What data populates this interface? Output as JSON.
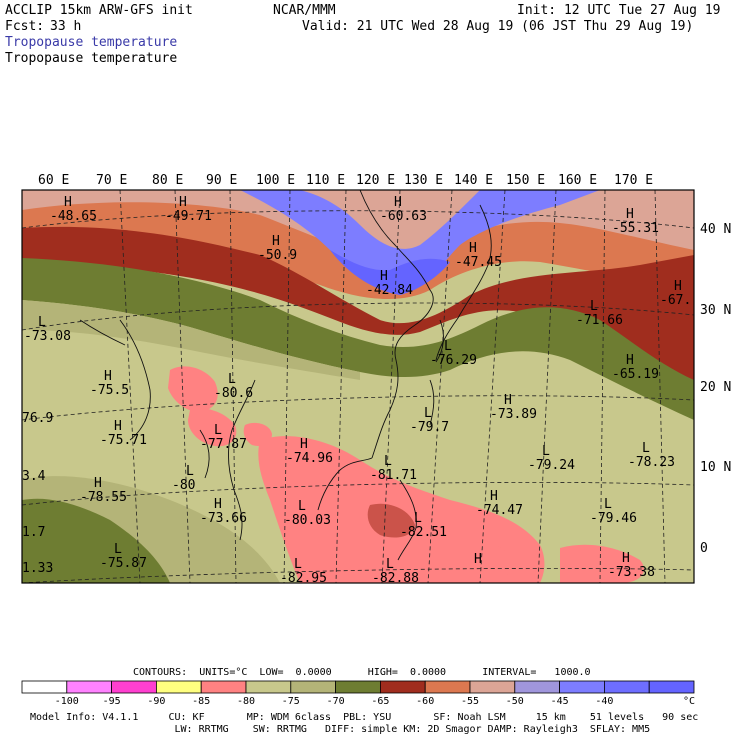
{
  "header": {
    "model": "ACCLIP 15km ARW-GFS init",
    "fcst_label": "Fcst:",
    "fcst_value": "33 h",
    "center": "NCAR/MMM",
    "init": "Init: 12 UTC Tue 27 Aug 19",
    "valid": "Valid: 21 UTC Wed 28 Aug 19 (06 JST Thu 29 Aug 19)",
    "field_title_1": "Tropopause temperature",
    "field_title_2": "Tropopause temperature"
  },
  "map": {
    "lon_labels": [
      "60 E",
      "70 E",
      "80 E",
      "90 E",
      "100 E",
      "110 E",
      "120 E",
      "130 E",
      "140 E",
      "150 E",
      "160 E",
      "170 E"
    ],
    "lat_labels": [
      "40 N",
      "30 N",
      "20 N",
      "10 N",
      "0"
    ],
    "extrema": [
      {
        "mark": "H",
        "value": "-48.65"
      },
      {
        "mark": "H",
        "value": "-49.71"
      },
      {
        "mark": "H",
        "value": "-60.63"
      },
      {
        "mark": "H",
        "value": "-55.31"
      },
      {
        "mark": "H",
        "value": "-50.9"
      },
      {
        "mark": "H",
        "value": "-47.45"
      },
      {
        "mark": "H",
        "value": "-42.84"
      },
      {
        "mark": "H",
        "value": "-67."
      },
      {
        "mark": "L",
        "value": "-73.08"
      },
      {
        "mark": "L",
        "value": "-71.66"
      },
      {
        "mark": "L",
        "value": "-76.29"
      },
      {
        "mark": "H",
        "value": "-75.5"
      },
      {
        "mark": "L",
        "value": "-80.6"
      },
      {
        "mark": "H",
        "value": "-65.19"
      },
      {
        "mark": "",
        "value": "76.9"
      },
      {
        "mark": "H",
        "value": "-75.71"
      },
      {
        "mark": "L",
        "value": "-77.87"
      },
      {
        "mark": "L",
        "value": "-79.7"
      },
      {
        "mark": "H",
        "value": "-73.89"
      },
      {
        "mark": "H",
        "value": "-74.96"
      },
      {
        "mark": "",
        "value": "3.4"
      },
      {
        "mark": "L",
        "value": "-81.71"
      },
      {
        "mark": "L",
        "value": "-79.24"
      },
      {
        "mark": "L",
        "value": "-78.23"
      },
      {
        "mark": "L",
        "value": "-80"
      },
      {
        "mark": "H",
        "value": "-78.55"
      },
      {
        "mark": "H",
        "value": "-74.47"
      },
      {
        "mark": "H",
        "value": "-73.66"
      },
      {
        "mark": "L",
        "value": "-80.03"
      },
      {
        "mark": "L",
        "value": "-82.51"
      },
      {
        "mark": "L",
        "value": "-79.46"
      },
      {
        "mark": "",
        "value": "1.7"
      },
      {
        "mark": "L",
        "value": "-75.87"
      },
      {
        "mark": "H",
        "value": "-73.38"
      },
      {
        "mark": "",
        "value": "1.33"
      },
      {
        "mark": "L",
        "value": "-82.95"
      },
      {
        "mark": "L",
        "value": "-82.88"
      },
      {
        "mark": "H",
        "value": ""
      }
    ]
  },
  "contours": {
    "line": "CONTOURS:  UNITS=°C  LOW=  0.0000      HIGH=  0.0000      INTERVAL=   1000.0"
  },
  "colorbar": {
    "colors": [
      "#ffffff",
      "#ff82ff",
      "#ff3fd0",
      "#ffff80",
      "#ff8282",
      "#c8c88c",
      "#b4b478",
      "#6e7d32",
      "#a02d1e",
      "#dc7850",
      "#dca596",
      "#a096dc",
      "#7d7dff",
      "#6e6eff",
      "#6464ff"
    ],
    "tick_labels": [
      "-100",
      "-95",
      "-90",
      "-85",
      "-80",
      "-75",
      "-70",
      "-65",
      "-60",
      "-55",
      "-50",
      "-45",
      "-40"
    ],
    "unit": "°C"
  },
  "footer": {
    "line1": "Model Info: V4.1.1     CU: KF       MP: WDM 6class  PBL: YSU       SF: Noah LSM     15 km    51 levels   90 sec",
    "line2": "                        LW: RRTMG    SW: RRTMG   DIFF: simple KM: 2D Smagor DAMP: Rayleigh3  SFLAY: MM5"
  }
}
